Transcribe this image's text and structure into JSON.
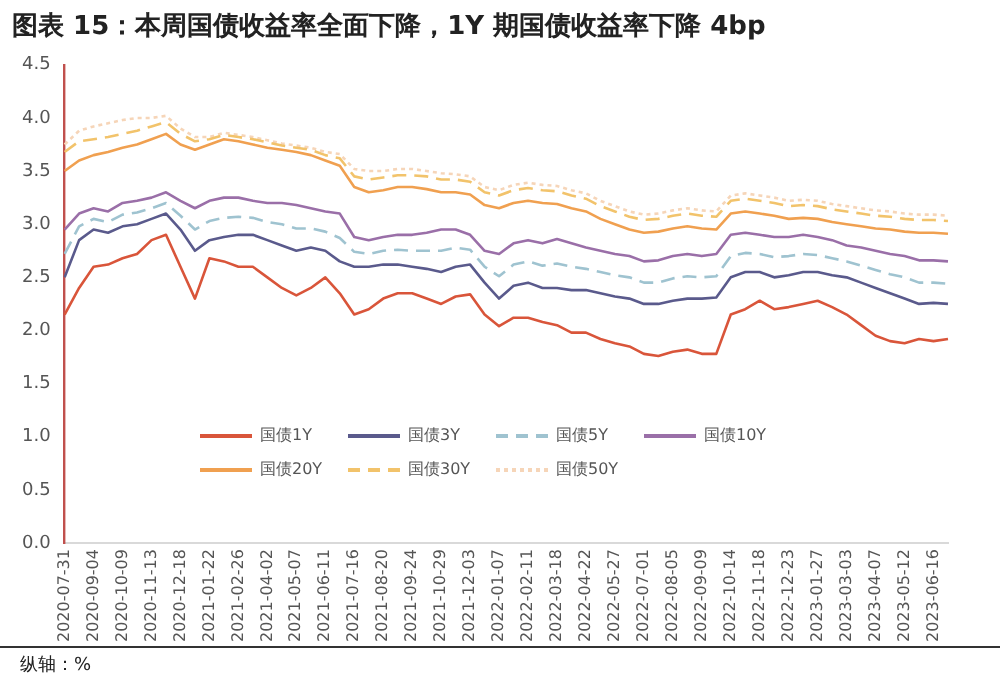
{
  "chart_data": {
    "type": "line",
    "title": "图表 15：本周国债收益率全面下降，1Y 期国债收益率下降 4bp",
    "annotations": [
      "纵轴：%"
    ],
    "categories": [
      "2020-07-31",
      null,
      "2020-09-04",
      null,
      "2020-10-09",
      null,
      "2020-11-13",
      null,
      "2020-12-18",
      null,
      "2021-01-22",
      null,
      "2021-02-26",
      null,
      "2021-04-02",
      null,
      "2021-05-07",
      null,
      "2021-06-11",
      null,
      "2021-07-16",
      null,
      "2021-08-20",
      null,
      "2021-09-24",
      null,
      "2021-10-29",
      null,
      "2021-12-03",
      null,
      "2022-01-07",
      null,
      "2022-02-11",
      null,
      "2022-03-18",
      null,
      "2022-04-22",
      null,
      "2022-05-27",
      null,
      "2022-07-01",
      null,
      "2022-08-05",
      null,
      "2022-09-09",
      null,
      "2022-10-14",
      null,
      "2022-11-18",
      null,
      "2022-12-23",
      null,
      "2023-01-27",
      null,
      "2023-03-03",
      null,
      "2023-04-07",
      null,
      "2023-05-12",
      null,
      "2023-06-16",
      null
    ],
    "series": [
      {
        "name": "国债1Y",
        "color": "#d9553a",
        "line_style": "solid",
        "values": [
          2.15,
          2.4,
          2.6,
          2.62,
          2.68,
          2.72,
          2.85,
          2.9,
          2.6,
          2.3,
          2.68,
          2.65,
          2.6,
          2.6,
          2.5,
          2.4,
          2.33,
          2.4,
          2.5,
          2.35,
          2.15,
          2.2,
          2.3,
          2.35,
          2.35,
          2.3,
          2.25,
          2.32,
          2.34,
          2.15,
          2.04,
          2.12,
          2.12,
          2.08,
          2.05,
          1.98,
          1.98,
          1.92,
          1.88,
          1.85,
          1.78,
          1.76,
          1.8,
          1.82,
          1.78,
          1.78,
          2.15,
          2.2,
          2.28,
          2.2,
          2.22,
          2.25,
          2.28,
          2.22,
          2.15,
          2.05,
          1.95,
          1.9,
          1.88,
          1.92,
          1.9,
          1.92
        ]
      },
      {
        "name": "国债3Y",
        "color": "#5a5a8c",
        "line_style": "solid",
        "values": [
          2.5,
          2.85,
          2.95,
          2.92,
          2.98,
          3.0,
          3.05,
          3.1,
          2.95,
          2.75,
          2.85,
          2.88,
          2.9,
          2.9,
          2.85,
          2.8,
          2.75,
          2.78,
          2.75,
          2.65,
          2.6,
          2.6,
          2.62,
          2.62,
          2.6,
          2.58,
          2.55,
          2.6,
          2.62,
          2.45,
          2.3,
          2.42,
          2.45,
          2.4,
          2.4,
          2.38,
          2.38,
          2.35,
          2.32,
          2.3,
          2.25,
          2.25,
          2.28,
          2.3,
          2.3,
          2.31,
          2.5,
          2.55,
          2.55,
          2.5,
          2.52,
          2.55,
          2.55,
          2.52,
          2.5,
          2.45,
          2.4,
          2.35,
          2.3,
          2.25,
          2.26,
          2.25
        ]
      },
      {
        "name": "国债5Y",
        "color": "#9fc3d0",
        "line_style": "dashed",
        "values": [
          2.72,
          2.98,
          3.05,
          3.02,
          3.09,
          3.11,
          3.15,
          3.2,
          3.08,
          2.95,
          3.03,
          3.06,
          3.07,
          3.06,
          3.02,
          3.0,
          2.96,
          2.96,
          2.93,
          2.87,
          2.74,
          2.72,
          2.75,
          2.76,
          2.75,
          2.75,
          2.75,
          2.78,
          2.76,
          2.6,
          2.51,
          2.62,
          2.65,
          2.61,
          2.63,
          2.6,
          2.58,
          2.55,
          2.52,
          2.5,
          2.45,
          2.45,
          2.49,
          2.51,
          2.5,
          2.51,
          2.7,
          2.73,
          2.72,
          2.69,
          2.7,
          2.72,
          2.71,
          2.68,
          2.65,
          2.61,
          2.57,
          2.53,
          2.5,
          2.45,
          2.45,
          2.44
        ]
      },
      {
        "name": "国债10Y",
        "color": "#9a6fa8",
        "line_style": "solid",
        "values": [
          2.95,
          3.1,
          3.15,
          3.12,
          3.2,
          3.22,
          3.25,
          3.3,
          3.22,
          3.15,
          3.22,
          3.25,
          3.25,
          3.22,
          3.2,
          3.2,
          3.18,
          3.15,
          3.12,
          3.1,
          2.88,
          2.85,
          2.88,
          2.9,
          2.9,
          2.92,
          2.95,
          2.95,
          2.9,
          2.75,
          2.72,
          2.82,
          2.85,
          2.82,
          2.86,
          2.82,
          2.78,
          2.75,
          2.72,
          2.7,
          2.65,
          2.66,
          2.7,
          2.72,
          2.7,
          2.72,
          2.9,
          2.92,
          2.9,
          2.88,
          2.88,
          2.9,
          2.88,
          2.85,
          2.8,
          2.78,
          2.75,
          2.72,
          2.7,
          2.66,
          2.66,
          2.65
        ]
      },
      {
        "name": "国债20Y",
        "color": "#f0a050",
        "line_style": "solid",
        "values": [
          3.5,
          3.6,
          3.65,
          3.68,
          3.72,
          3.75,
          3.8,
          3.85,
          3.75,
          3.7,
          3.75,
          3.8,
          3.78,
          3.75,
          3.72,
          3.7,
          3.68,
          3.65,
          3.6,
          3.55,
          3.35,
          3.3,
          3.32,
          3.35,
          3.35,
          3.33,
          3.3,
          3.3,
          3.28,
          3.18,
          3.15,
          3.2,
          3.22,
          3.2,
          3.19,
          3.15,
          3.12,
          3.05,
          3.0,
          2.95,
          2.92,
          2.93,
          2.96,
          2.98,
          2.96,
          2.95,
          3.1,
          3.12,
          3.1,
          3.08,
          3.05,
          3.06,
          3.05,
          3.02,
          3.0,
          2.98,
          2.96,
          2.95,
          2.93,
          2.92,
          2.92,
          2.91
        ]
      },
      {
        "name": "国债30Y",
        "color": "#f2c36b",
        "line_style": "dashed",
        "values": [
          3.68,
          3.78,
          3.8,
          3.82,
          3.85,
          3.88,
          3.92,
          3.96,
          3.85,
          3.78,
          3.8,
          3.84,
          3.82,
          3.8,
          3.77,
          3.74,
          3.72,
          3.7,
          3.65,
          3.62,
          3.45,
          3.42,
          3.44,
          3.46,
          3.46,
          3.45,
          3.42,
          3.42,
          3.4,
          3.3,
          3.27,
          3.32,
          3.34,
          3.32,
          3.31,
          3.27,
          3.24,
          3.17,
          3.12,
          3.07,
          3.04,
          3.05,
          3.08,
          3.1,
          3.08,
          3.07,
          3.22,
          3.24,
          3.22,
          3.2,
          3.17,
          3.18,
          3.17,
          3.14,
          3.12,
          3.1,
          3.08,
          3.07,
          3.05,
          3.04,
          3.04,
          3.03
        ]
      },
      {
        "name": "国债50Y",
        "color": "#f6d5b8",
        "line_style": "dotted",
        "values": [
          3.75,
          3.88,
          3.92,
          3.95,
          3.98,
          4.0,
          4.0,
          4.02,
          3.9,
          3.82,
          3.82,
          3.86,
          3.84,
          3.82,
          3.79,
          3.76,
          3.74,
          3.72,
          3.68,
          3.66,
          3.52,
          3.5,
          3.5,
          3.52,
          3.52,
          3.5,
          3.48,
          3.47,
          3.45,
          3.35,
          3.32,
          3.37,
          3.39,
          3.37,
          3.36,
          3.32,
          3.29,
          3.22,
          3.17,
          3.12,
          3.09,
          3.1,
          3.13,
          3.15,
          3.13,
          3.12,
          3.27,
          3.29,
          3.27,
          3.25,
          3.22,
          3.23,
          3.22,
          3.19,
          3.17,
          3.15,
          3.13,
          3.12,
          3.1,
          3.09,
          3.09,
          3.08
        ]
      }
    ],
    "ylim": [
      0,
      4.5
    ],
    "yticks": [
      {
        "value": 0,
        "label": "0.0"
      },
      {
        "value": 0.5,
        "label": "0.5"
      },
      {
        "value": 1,
        "label": "1.0"
      },
      {
        "value": 1.5,
        "label": "1.5"
      },
      {
        "value": 2,
        "label": "2.0"
      },
      {
        "value": 2.5,
        "label": "2.5"
      },
      {
        "value": 3,
        "label": "3.0"
      },
      {
        "value": 3.5,
        "label": "3.5"
      },
      {
        "value": 4,
        "label": "4.0"
      },
      {
        "value": 4.5,
        "label": "4.5"
      }
    ],
    "grid": false,
    "legend": "bottom left",
    "marker": "none"
  }
}
